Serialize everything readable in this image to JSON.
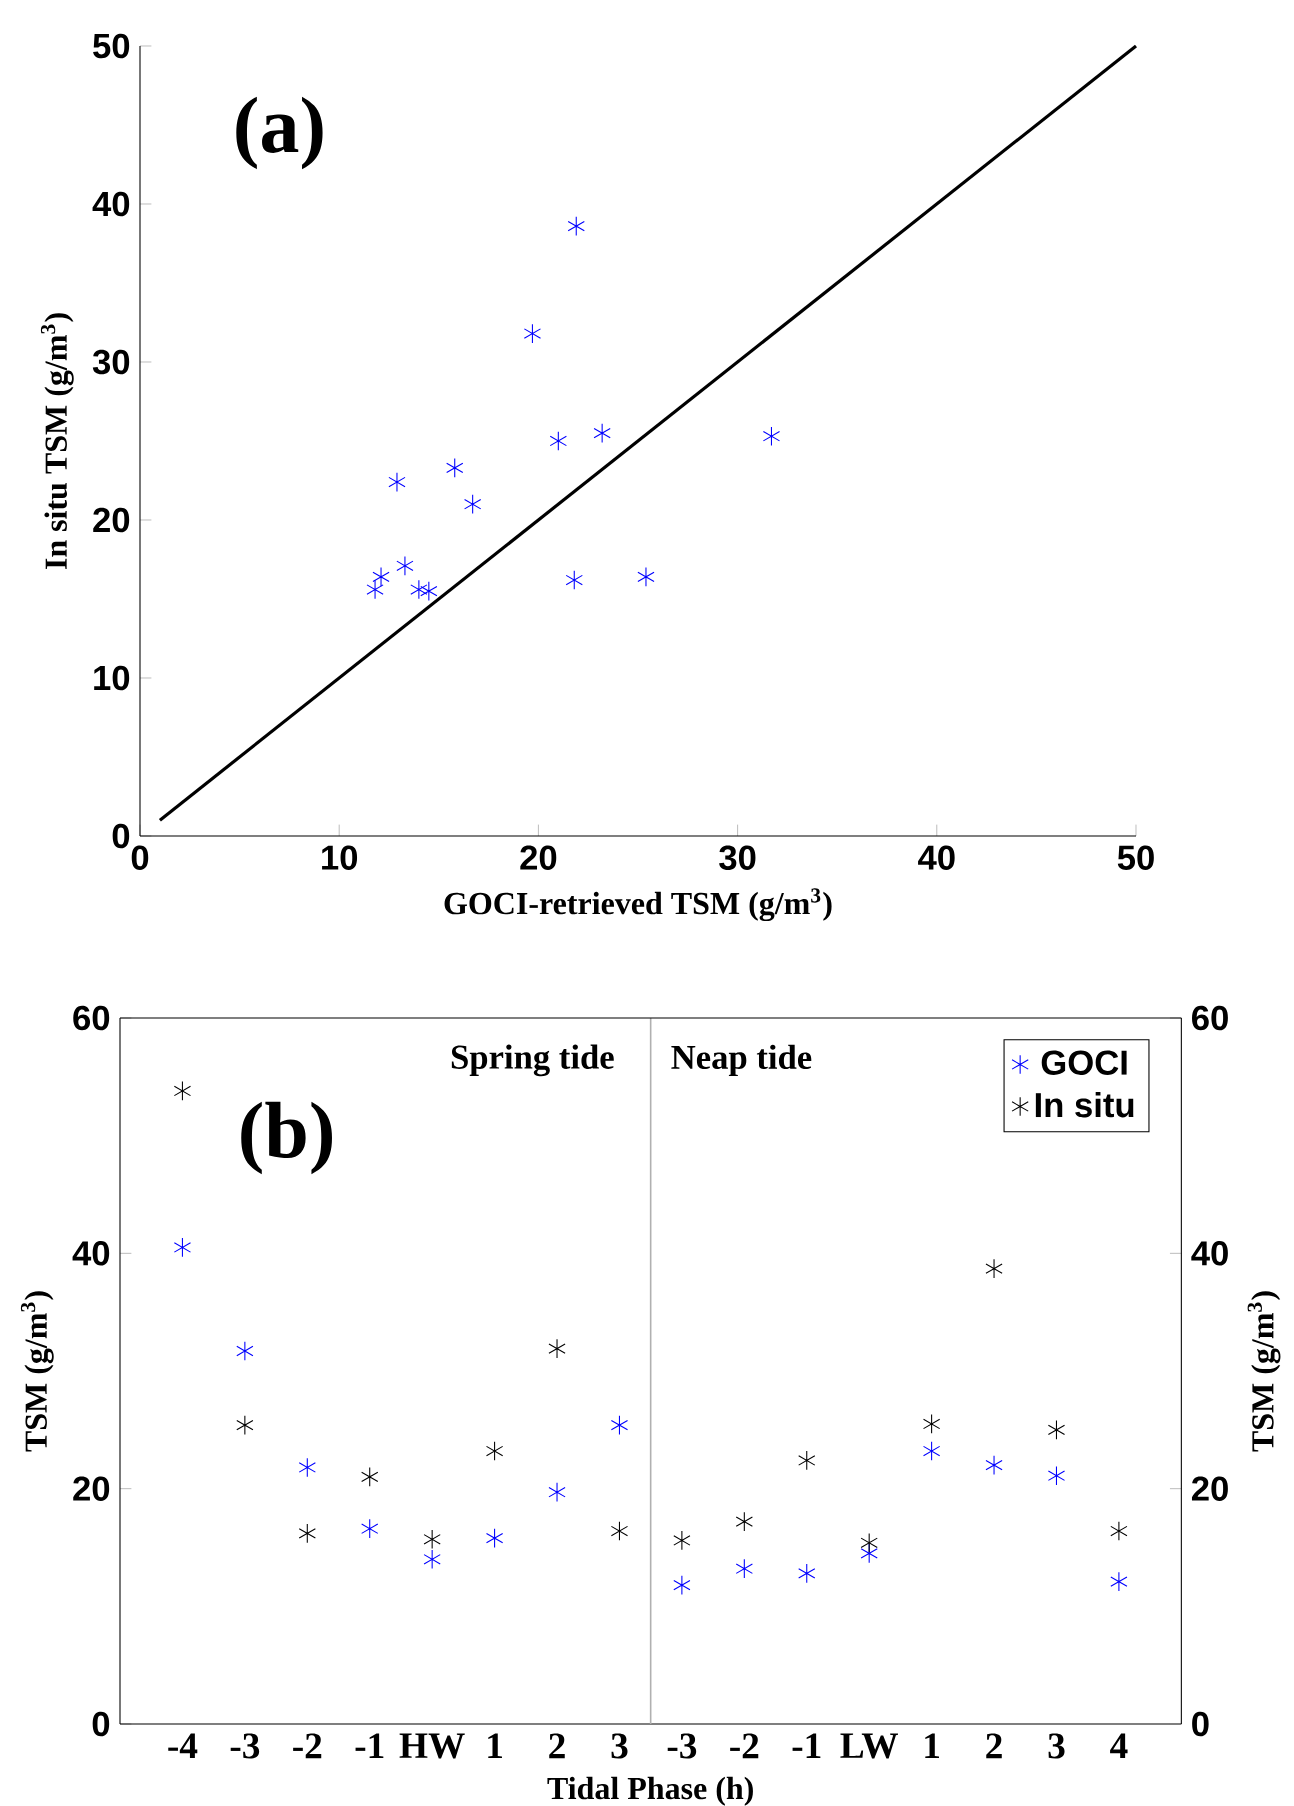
{
  "chart_data": [
    {
      "type": "scatter",
      "xlabel": "GOCI-retrieved TSM (g/m$^{3}$)",
      "ylabel": "In situ TSM (g/m$^{3}$)",
      "annotations": [
        "(a)"
      ],
      "xlim": [
        0,
        50
      ],
      "ylim": [
        0,
        50
      ],
      "xticks": [
        0,
        10,
        20,
        30,
        40,
        50
      ],
      "yticks": [
        0,
        10,
        20,
        30,
        40,
        50
      ],
      "marker": "cross",
      "series": [
        {
          "type": "scatter",
          "color": "#0000ff",
          "x": [
            21.9,
            19.7,
            21.0,
            23.2,
            31.7,
            15.8,
            12.9,
            16.7,
            13.3,
            12.1,
            11.8,
            14.0,
            14.5,
            21.8,
            25.4
          ],
          "values": [
            38.6,
            31.8,
            25.0,
            25.5,
            25.3,
            23.3,
            22.4,
            21.0,
            17.1,
            16.4,
            15.6,
            15.6,
            15.5,
            16.2,
            16.4
          ]
        },
        {
          "type": "line",
          "color": "#000000",
          "marker": "none",
          "x": [
            1,
            50
          ],
          "values": [
            1,
            50
          ]
        }
      ]
    },
    {
      "type": "scatter",
      "xlabel": "Tidal Phase (h)",
      "ylabel": "TSM (g/m$^{3}$)",
      "y2label": "TSM (g/m$^{3}$)",
      "annotations": [
        "(b)",
        "Spring tide",
        "Neap tide"
      ],
      "categories": [
        "-4",
        "-3",
        "-2",
        "-1",
        "HW",
        "1",
        "2",
        "3",
        "-3",
        "-2",
        "-1",
        "LW",
        "1",
        "2",
        "3",
        "4"
      ],
      "ylim": [
        0,
        60
      ],
      "yticks": [
        0,
        20,
        40,
        60
      ],
      "y2lim": [
        0,
        60
      ],
      "y2ticks": [
        0,
        20,
        40,
        60
      ],
      "marker": "cross",
      "legend": "top right",
      "series": [
        {
          "name": "GOCI",
          "color": "#0000ff",
          "values": [
            40.5,
            31.7,
            21.8,
            16.6,
            14.0,
            15.8,
            19.7,
            25.4,
            11.8,
            13.2,
            12.8,
            14.5,
            23.2,
            22.0,
            21.1,
            12.1
          ]
        },
        {
          "name": "In situ",
          "color": "#000000",
          "values": [
            53.8,
            25.4,
            16.2,
            21.0,
            15.7,
            23.2,
            31.9,
            16.4,
            15.6,
            17.2,
            22.4,
            15.4,
            25.5,
            38.7,
            25.0,
            16.4
          ]
        }
      ]
    }
  ]
}
